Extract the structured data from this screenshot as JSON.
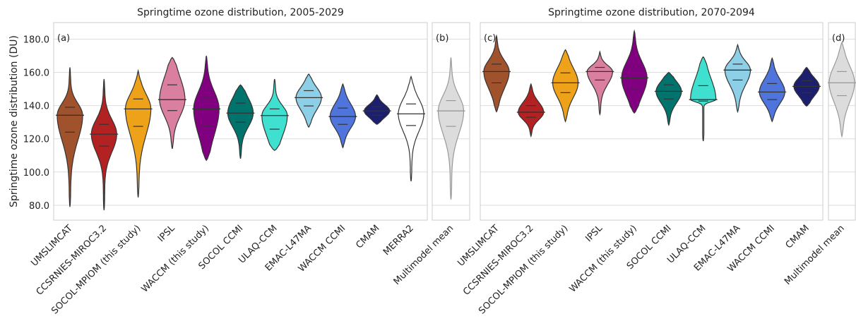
{
  "chart_data": [
    {
      "type": "violin",
      "title": "Springtime ozone distribution, 2005-2029",
      "panel_label": "(a)",
      "y_label": "Springtime ozone distribution (DU)",
      "ylim": [
        71,
        190
      ],
      "yticks": [
        {
          "value": 80,
          "label": "80.0"
        },
        {
          "value": 100,
          "label": "100.0"
        },
        {
          "value": 120,
          "label": "120.0"
        },
        {
          "value": 140,
          "label": "140.0"
        },
        {
          "value": 160,
          "label": "160.0"
        },
        {
          "value": 180,
          "label": "180.0"
        }
      ],
      "grid": true,
      "categories": [
        "UMSLIMCAT",
        "CCSRNIES-MIROC3.2",
        "SOCOL-MPIOM (this study)",
        "IPSL",
        "WACCM (this study)",
        "SOCOL CCMI",
        "ULAQ-CCM",
        "EMAC-L47MA",
        "WACCM CCMI",
        "CMAM",
        "MERRA2"
      ],
      "colors": [
        "#a0522d",
        "#b22222",
        "#eea21a",
        "#db7fa0",
        "#800080",
        "#00736d",
        "#40e0d0",
        "#8ccfe6",
        "#4f74dc",
        "#1c1f6e",
        "#ffffff"
      ],
      "median": [
        134.2,
        122.8,
        138,
        143.6,
        138,
        135.5,
        134,
        144.8,
        133.4,
        136.8,
        135
      ],
      "q1": [
        124,
        115.6,
        127.5,
        137,
        127.5,
        130,
        125.8,
        139.8,
        128.7,
        134.2,
        128
      ],
      "q3": [
        139,
        128.7,
        144,
        152.5,
        145,
        141.5,
        138,
        149,
        138.5,
        139.3,
        141
      ],
      "min": [
        79,
        77,
        84.7,
        114,
        107,
        108,
        113,
        127,
        114.7,
        128.7,
        94.4
      ],
      "max": [
        163,
        156,
        161,
        169,
        170,
        152.5,
        156,
        159,
        153,
        146.5,
        157.5
      ]
    },
    {
      "type": "violin",
      "panel_label": "(b)",
      "ylim": [
        71,
        190
      ],
      "grid": true,
      "categories": [
        "Multimodel mean"
      ],
      "colors": [
        "#dcdcdc"
      ],
      "median": [
        136.8
      ],
      "q1": [
        127.5
      ],
      "q3": [
        143
      ],
      "min": [
        83.4
      ],
      "max": [
        169
      ]
    },
    {
      "type": "violin",
      "title": "Springtime ozone distribution, 2070-2094",
      "panel_label": "(c)",
      "ylim": [
        71,
        190
      ],
      "grid": true,
      "categories": [
        "UMSLIMCAT",
        "CCSRNIES-MIROC3.2",
        "SOCOL-MPIOM (this study)",
        "IPSL",
        "WACCM (this study)",
        "SOCOL CCMI",
        "ULAQ-CCM",
        "EMAC-L47MA",
        "WACCM CCMI",
        "CMAM"
      ],
      "colors": [
        "#a0522d",
        "#b22222",
        "#eea21a",
        "#db7fa0",
        "#800080",
        "#00736d",
        "#40e0d0",
        "#8ccfe6",
        "#4f74dc",
        "#1c1f6e"
      ],
      "median": [
        160.5,
        136,
        153.7,
        160.5,
        156.7,
        148.6,
        143.6,
        161.4,
        148.2,
        151.6
      ],
      "q1": [
        153.7,
        133,
        147.8,
        155.4,
        149.5,
        144,
        142.7,
        155.4,
        143.6,
        147.8
      ],
      "q3": [
        165,
        140,
        159.7,
        163,
        163,
        152.5,
        152,
        165,
        153.3,
        155
      ],
      "min": [
        136.3,
        121.5,
        130.4,
        134.7,
        135.5,
        128.3,
        118.6,
        136.3,
        130.4,
        139.7
      ],
      "max": [
        182,
        153,
        173.6,
        172.4,
        185,
        160,
        169.4,
        176.6,
        168.6,
        163
      ]
    },
    {
      "type": "violin",
      "panel_label": "(d)",
      "ylim": [
        71,
        190
      ],
      "grid": true,
      "categories": [
        "Multimodel mean"
      ],
      "colors": [
        "#dcdcdc"
      ],
      "median": [
        153.7
      ],
      "q1": [
        146
      ],
      "q3": [
        160.5
      ],
      "min": [
        121.5
      ],
      "max": [
        178
      ]
    }
  ]
}
